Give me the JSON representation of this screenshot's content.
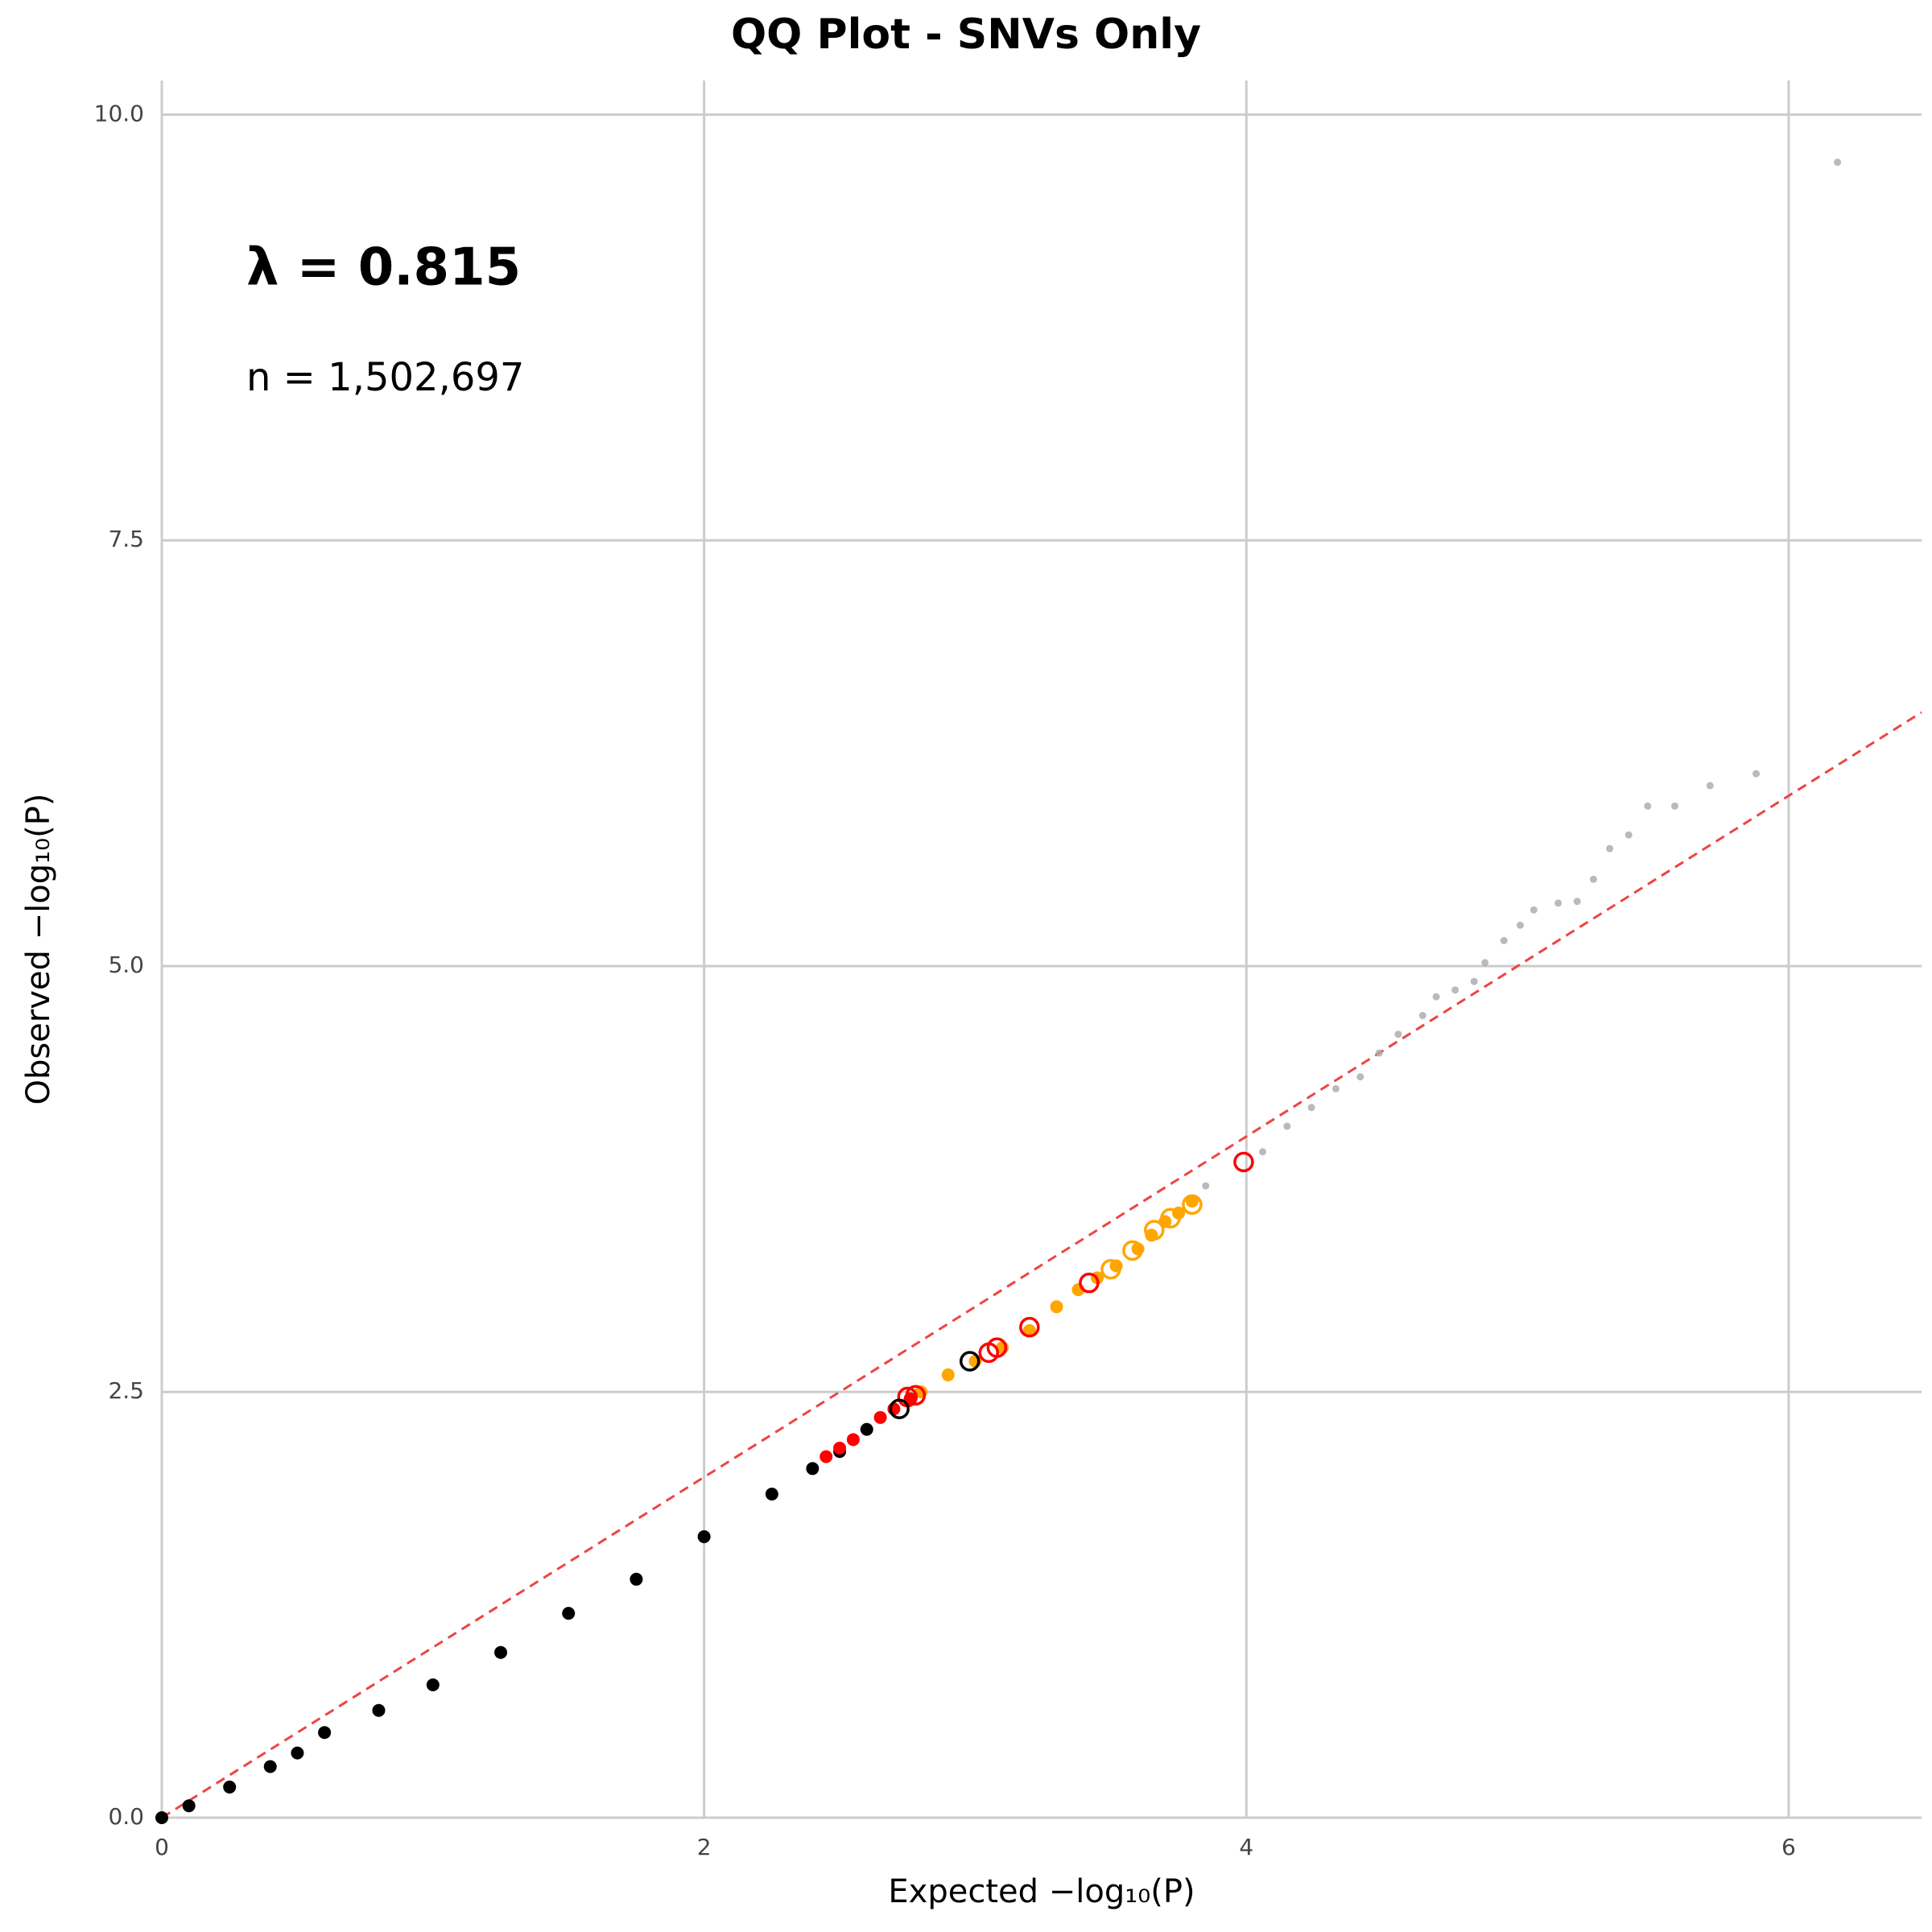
{
  "chart_data": {
    "type": "scatter",
    "title": "QQ Plot - SNVs Only",
    "x_label": "Expected −log₁₀(P)",
    "y_label": "Observed −log₁₀(P)",
    "annotations": [
      "λ = 0.815",
      "n = 1,502,697"
    ],
    "xlim": [
      0,
      6.49
    ],
    "ylim": [
      0,
      10.2
    ],
    "xticks": [
      0,
      2,
      4,
      6
    ],
    "yticks": [
      {
        "value": 0,
        "label": "0.0"
      },
      2.5,
      {
        "value": 5,
        "label": "5.0"
      },
      7.5,
      {
        "value": 10,
        "label": "10.0"
      }
    ],
    "grid": true,
    "series": [
      {
        "color": "#000000",
        "marker": "filled",
        "size": 8,
        "x": [
          0,
          0.1,
          0.25,
          0.4,
          0.5,
          0.6,
          0.8,
          1,
          1.25,
          1.5,
          1.75,
          2,
          2.25,
          2.4,
          2.5,
          2.6
        ],
        "values": [
          0,
          0.07,
          0.18,
          0.3,
          0.38,
          0.5,
          0.63,
          0.78,
          0.97,
          1.2,
          1.4,
          1.65,
          1.9,
          2.05,
          2.15,
          2.28
        ]
      },
      {
        "color": "#ff0000",
        "marker": "filled",
        "size": 8,
        "x": [
          2.45,
          2.5,
          2.55,
          2.65,
          2.7,
          2.76
        ],
        "values": [
          2.12,
          2.17,
          2.22,
          2.35,
          2.4,
          2.46
        ]
      },
      {
        "color": "#ffa500",
        "marker": "filled",
        "size": 8,
        "x": [
          2.8,
          2.9,
          3.0,
          3.1,
          3.2,
          3.3,
          3.38,
          3.45,
          3.52,
          3.6,
          3.65,
          3.7,
          3.75,
          3.8
        ],
        "values": [
          2.5,
          2.6,
          2.68,
          2.76,
          2.86,
          3.0,
          3.1,
          3.17,
          3.24,
          3.34,
          3.42,
          3.5,
          3.55,
          3.62
        ]
      },
      {
        "color": "#a9a9a9",
        "marker": "filled",
        "size": 4.5,
        "x": [
          3.85,
          4.06,
          4.15,
          4.24,
          4.33,
          4.42,
          4.49,
          4.56,
          4.65,
          4.7,
          4.77,
          4.84,
          4.88,
          4.95,
          5.01,
          5.06,
          5.15,
          5.22,
          5.28,
          5.34,
          5.41,
          5.48,
          5.58,
          5.71,
          5.88,
          6.18
        ],
        "values": [
          3.71,
          3.91,
          4.06,
          4.17,
          4.28,
          4.35,
          4.49,
          4.6,
          4.71,
          4.82,
          4.86,
          4.91,
          5.02,
          5.15,
          5.24,
          5.33,
          5.37,
          5.38,
          5.51,
          5.69,
          5.77,
          5.94,
          5.94,
          6.06,
          6.13,
          9.72
        ]
      },
      {
        "color": "#ffa500",
        "marker": "open",
        "size": 11,
        "x": [
          3.5,
          3.58,
          3.66,
          3.72,
          3.8
        ],
        "values": [
          3.22,
          3.33,
          3.45,
          3.52,
          3.6
        ]
      },
      {
        "color": "#ff0000",
        "marker": "open",
        "size": 11,
        "x": [
          2.75,
          2.78,
          3.05,
          3.08,
          3.2,
          3.42,
          3.99
        ],
        "values": [
          2.47,
          2.48,
          2.73,
          2.76,
          2.88,
          3.14,
          3.85
        ]
      },
      {
        "color": "#000000",
        "marker": "open",
        "size": 11,
        "x": [
          2.72,
          2.98
        ],
        "values": [
          2.4,
          2.68
        ]
      }
    ]
  }
}
